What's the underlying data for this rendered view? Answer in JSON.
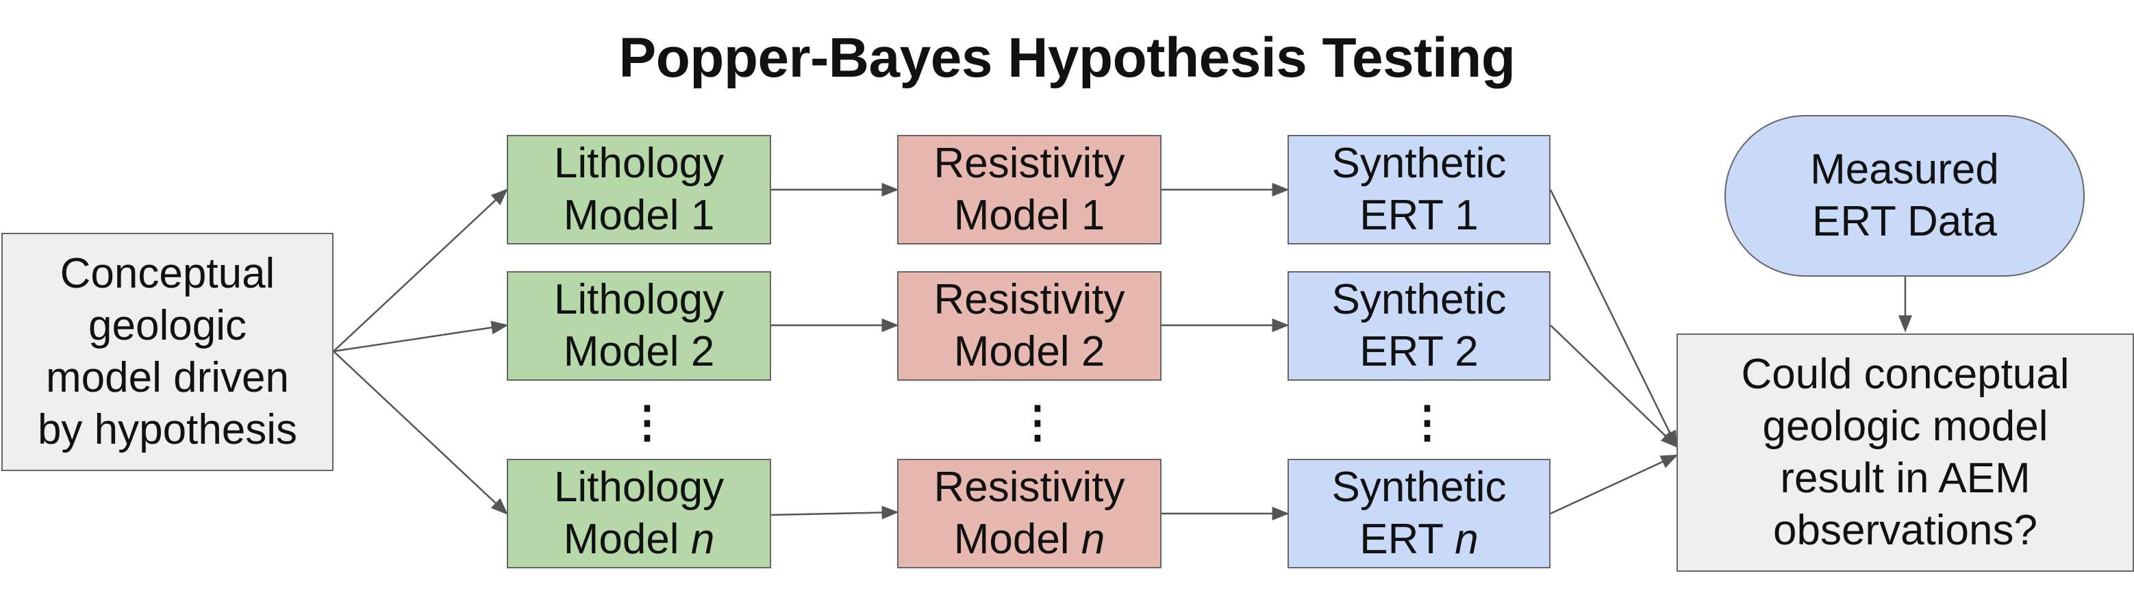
{
  "title": "Popper-Bayes Hypothesis Testing",
  "conceptual": {
    "lines": [
      "Conceptual",
      "geologic",
      "model driven",
      "by hypothesis"
    ]
  },
  "lithology": [
    {
      "line1": "Lithology",
      "line2": "Model",
      "index": "1"
    },
    {
      "line1": "Lithology",
      "line2": "Model",
      "index": "2"
    },
    {
      "line1": "Lithology",
      "line2": "Model",
      "index": "n"
    }
  ],
  "resistivity": [
    {
      "line1": "Resistivity",
      "line2": "Model",
      "index": "1"
    },
    {
      "line1": "Resistivity",
      "line2": "Model",
      "index": "2"
    },
    {
      "line1": "Resistivity",
      "line2": "Model",
      "index": "n"
    }
  ],
  "synthetic": [
    {
      "line1": "Synthetic",
      "line2": "ERT",
      "index": "1"
    },
    {
      "line1": "Synthetic",
      "line2": "ERT",
      "index": "2"
    },
    {
      "line1": "Synthetic",
      "line2": "ERT",
      "index": "n"
    }
  ],
  "ellipsis": "⋮",
  "measured": {
    "lines": [
      "Measured",
      "ERT Data"
    ]
  },
  "question": {
    "lines": [
      "Could conceptual",
      "geologic model",
      "result in AEM",
      "observations?"
    ]
  },
  "colors": {
    "lithology": "#b6d7a8",
    "resistivity": "#e6b8af",
    "synthetic": "#c9daf8",
    "neutral": "#efefef",
    "border": "#666666",
    "arrow": "#555555"
  }
}
